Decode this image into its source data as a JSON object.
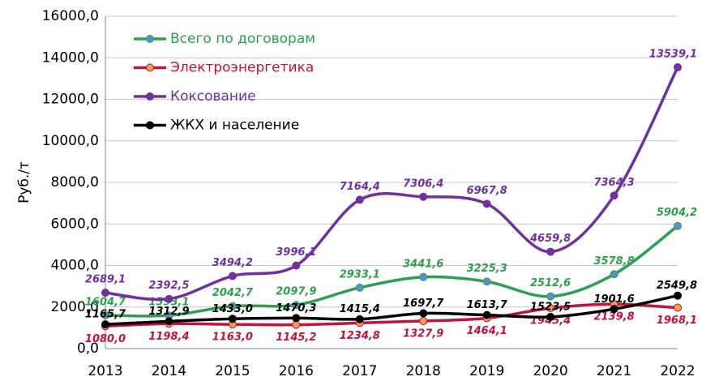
{
  "chart_data": {
    "type": "line",
    "y_label": "Руб./т",
    "categories": [
      "2013",
      "2014",
      "2015",
      "2016",
      "2017",
      "2018",
      "2019",
      "2020",
      "2021",
      "2022"
    ],
    "ylim": [
      0,
      16000
    ],
    "yticks": [
      {
        "value": 0,
        "label": "0,0"
      },
      {
        "value": 2000,
        "label": "2000,0"
      },
      {
        "value": 4000,
        "label": "4000,0"
      },
      {
        "value": 6000,
        "label": "6000,0"
      },
      {
        "value": 8000,
        "label": "8000,0"
      },
      {
        "value": 10000,
        "label": "10000,0"
      },
      {
        "value": 12000,
        "label": "12000,0"
      },
      {
        "value": 14000,
        "label": "14000,0"
      },
      {
        "value": 16000,
        "label": "16000,0"
      }
    ],
    "grid": true,
    "smooth": true,
    "legend": "upper left",
    "series": [
      {
        "name": "Всего по договорам",
        "color": "#2ca050",
        "marker_color": "#5b8fc9",
        "values": [
          1604.7,
          1593.1,
          2042.7,
          2097.9,
          2933.1,
          3441.6,
          3225.3,
          2512.6,
          3578.8,
          5904.2
        ],
        "value_labels": [
          "1604,7",
          "1593,1",
          "2042,7",
          "2097,9",
          "2933,1",
          "3441,6",
          "3225,3",
          "2512,6",
          "3578,8",
          "5904,2"
        ]
      },
      {
        "name": "Электроэнергетика",
        "color": "#c0143c",
        "marker_color": "#f0a050",
        "values": [
          1080.0,
          1198.4,
          1163.0,
          1145.2,
          1234.8,
          1327.9,
          1464.1,
          1945.4,
          2139.8,
          1968.1
        ],
        "value_labels": [
          "1080,0",
          "1198,4",
          "1163,0",
          "1145,2",
          "1234,8",
          "1327,9",
          "1464,1",
          "1945,4",
          "2139,8",
          "1968,1"
        ]
      },
      {
        "name": "Коксование",
        "color": "#7030a0",
        "marker_color": "#7030a0",
        "values": [
          2689.1,
          2392.5,
          3494.2,
          3996.1,
          7164.4,
          7306.4,
          6967.8,
          4659.8,
          7364.3,
          13539.1
        ],
        "value_labels": [
          "2689,1",
          "2392,5",
          "3494,2",
          "3996,1",
          "7164,4",
          "7306,4",
          "6967,8",
          "4659,8",
          "7364,3",
          "13539,1"
        ]
      },
      {
        "name": "ЖКХ и население",
        "color": "#000000",
        "marker_color": "#000000",
        "values": [
          1165.7,
          1312.9,
          1433.0,
          1470.3,
          1415.4,
          1697.7,
          1613.7,
          1523.5,
          1901.6,
          2549.8
        ],
        "value_labels": [
          "1165,7",
          "1312,9",
          "1433,0",
          "1470,3",
          "1415,4",
          "1697,7",
          "1613,7",
          "1523,5",
          "1901,6",
          "2549,8"
        ]
      }
    ]
  }
}
